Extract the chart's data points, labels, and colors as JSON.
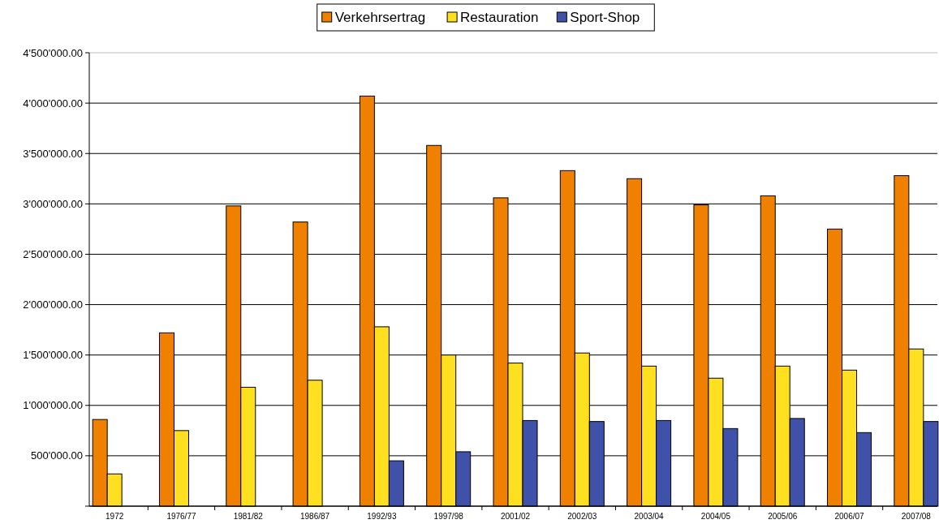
{
  "chart_data": {
    "type": "bar",
    "categories": [
      "1972",
      "1976/77",
      "1981/82",
      "1986/87",
      "1992/93",
      "1997/98",
      "2001/02",
      "2002/03",
      "2003/04",
      "2004/05",
      "2005/06",
      "2006/07",
      "2007/08"
    ],
    "series": [
      {
        "name": "Verkehrsertrag",
        "color": "#f08000",
        "values": [
          860000,
          1720000,
          2980000,
          2820000,
          4070000,
          3580000,
          3060000,
          3330000,
          3250000,
          2990000,
          3080000,
          2750000,
          3280000
        ]
      },
      {
        "name": "Restauration",
        "color": "#ffe020",
        "values": [
          320000,
          750000,
          1180000,
          1250000,
          1780000,
          1500000,
          1420000,
          1520000,
          1390000,
          1270000,
          1390000,
          1350000,
          1560000
        ]
      },
      {
        "name": "Sport-Shop",
        "color": "#3f51a8",
        "values": [
          null,
          null,
          null,
          null,
          450000,
          540000,
          850000,
          840000,
          850000,
          770000,
          870000,
          730000,
          840000
        ]
      }
    ],
    "ylim": [
      0,
      4500000
    ],
    "yticks": [
      {
        "value": 0,
        "label": null
      },
      {
        "value": 500000,
        "label": "500'000.00"
      },
      {
        "value": 1000000,
        "label": "1'000'000.00"
      },
      {
        "value": 1500000,
        "label": "1'500'000.00"
      },
      {
        "value": 2000000,
        "label": "2'000'000.00"
      },
      {
        "value": 2500000,
        "label": "2'500'000.00"
      },
      {
        "value": 3000000,
        "label": "3'000'000.00"
      },
      {
        "value": 3500000,
        "label": "3'500'000.00"
      },
      {
        "value": 4000000,
        "label": "4'000'000.00"
      },
      {
        "value": 4500000,
        "label": "4'500'000.00"
      }
    ],
    "grid": "y",
    "legend": "top"
  }
}
